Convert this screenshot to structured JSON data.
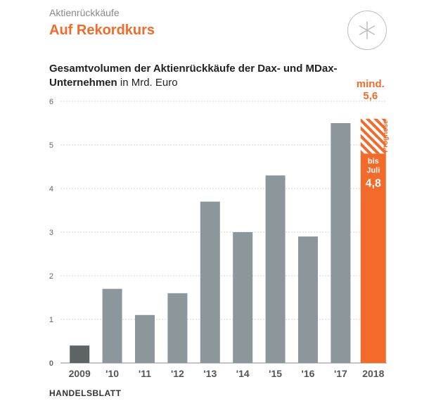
{
  "header": {
    "kicker": "Aktienrückkäufe",
    "headline": "Auf Rekordkurs",
    "badge_icon": "asterisk-icon"
  },
  "subtitle": {
    "bold": "Gesamtvolumen der Aktienrückkäufe der Dax- und MDax-Unternehmen",
    "unit": " in Mrd. Euro"
  },
  "source": "HANDELSBLATT",
  "colors": {
    "bar": "#8c979b",
    "first_bar": "#5e6366",
    "highlight": "#f26b2a",
    "grid": "#d6d6d6"
  },
  "chart_data": {
    "type": "bar",
    "title": "Gesamtvolumen der Aktienrückkäufe der Dax- und MDax-Unternehmen in Mrd. Euro",
    "categories": [
      "2009",
      "'10",
      "'11",
      "'12",
      "'13",
      "'14",
      "'15",
      "'16",
      "'17",
      "2018"
    ],
    "values": [
      0.4,
      1.7,
      1.1,
      1.6,
      3.7,
      3.0,
      4.3,
      2.9,
      5.5,
      4.8
    ],
    "forecast": {
      "category": "2018",
      "total": 5.6,
      "label": "Prognose",
      "total_label": [
        "mind.",
        "5,6"
      ]
    },
    "actual_2018_label": [
      "bis",
      "Juli",
      "4,8"
    ],
    "ylim": [
      0,
      6
    ],
    "yticks": [
      0,
      1,
      2,
      3,
      4,
      5,
      6
    ],
    "grid": true
  }
}
